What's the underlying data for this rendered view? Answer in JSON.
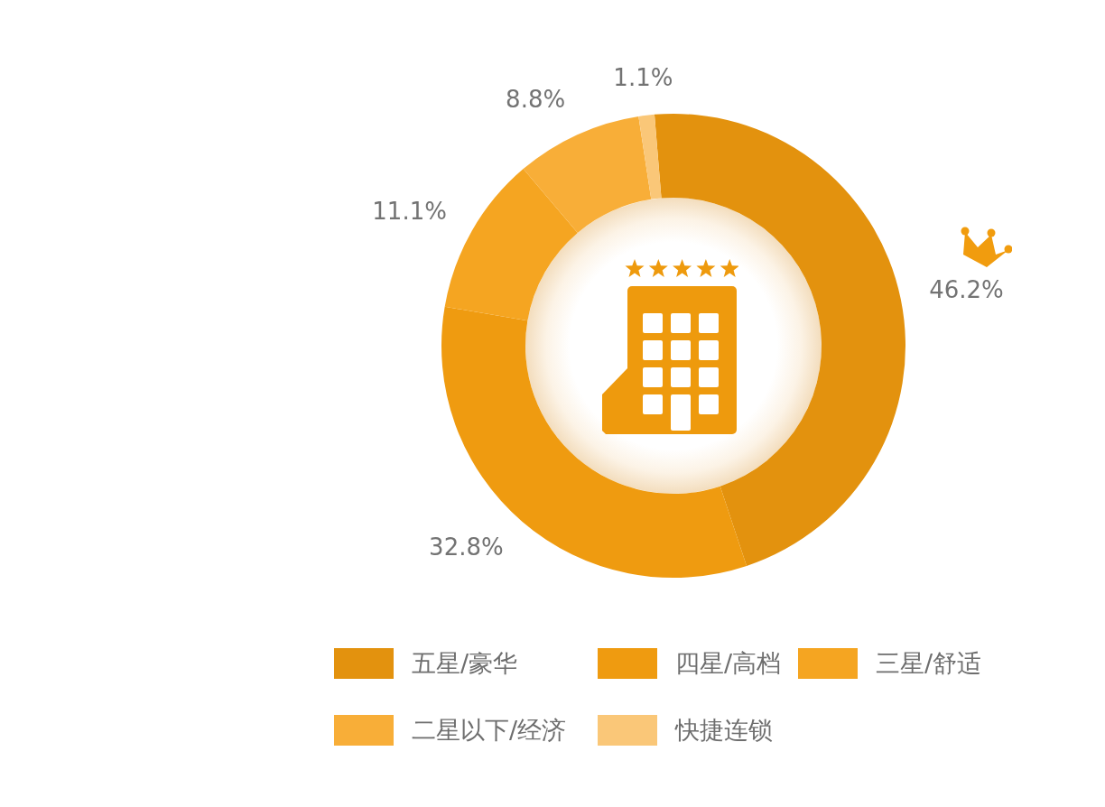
{
  "chart_data": {
    "type": "donut",
    "categories": [
      "五星/豪华",
      "四星/高档",
      "三星/舒适",
      "二星以下/经济",
      "快捷连锁"
    ],
    "values": [
      46.2,
      32.8,
      11.1,
      8.8,
      1.1
    ],
    "colors": [
      "#e3920e",
      "#ef9b10",
      "#f5a521",
      "#f8ae38",
      "#fac778"
    ],
    "value_labels": [
      "46.2%",
      "32.8%",
      "11.1%",
      "8.8%",
      "1.1%"
    ],
    "legend": "bottom"
  }
}
